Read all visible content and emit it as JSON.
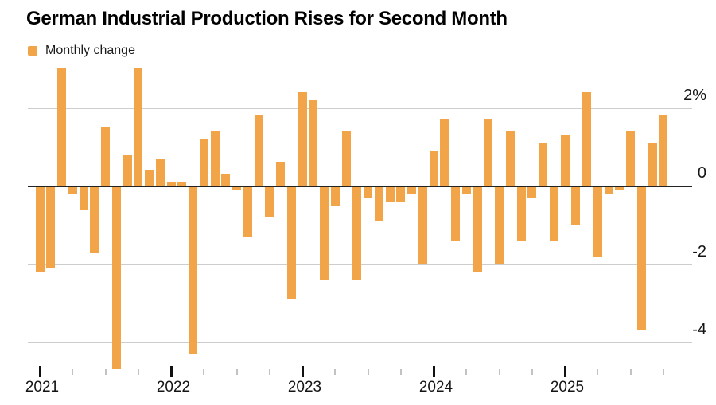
{
  "header": {
    "title": "German Industrial Production Rises for Second Month"
  },
  "legend": {
    "label": "Monthly change",
    "swatch_color": "#F2A449"
  },
  "chart_data": {
    "type": "bar",
    "title": "German Industrial Production Rises for Second Month",
    "series_name": "Monthly change",
    "unit": "percent, month-over-month",
    "bar_color": "#F2A449",
    "x": [
      "Jan 2021",
      "Feb 2021",
      "Mar 2021",
      "Apr 2021",
      "May 2021",
      "Jun 2021",
      "Jul 2021",
      "Aug 2021",
      "Sep 2021",
      "Oct 2021",
      "Nov 2021",
      "Dec 2021",
      "Jan 2022",
      "Feb 2022",
      "Mar 2022",
      "Apr 2022",
      "May 2022",
      "Jun 2022",
      "Jul 2022",
      "Aug 2022",
      "Sep 2022",
      "Oct 2022",
      "Nov 2022",
      "Dec 2022",
      "Jan 2023",
      "Feb 2023",
      "Mar 2023",
      "Apr 2023",
      "May 2023",
      "Jun 2023",
      "Jul 2023",
      "Aug 2023",
      "Sep 2023",
      "Oct 2023",
      "Nov 2023",
      "Dec 2023",
      "Jan 2024",
      "Feb 2024",
      "Mar 2024",
      "Apr 2024",
      "May 2024",
      "Jun 2024",
      "Jul 2024",
      "Aug 2024",
      "Sep 2024",
      "Oct 2024",
      "Nov 2024",
      "Dec 2024",
      "Jan 2025",
      "Feb 2025",
      "Mar 2025",
      "Apr 2025",
      "May 2025",
      "Jun 2025",
      "Jul 2025",
      "Aug 2025",
      "Sep 2025",
      "Oct 2025"
    ],
    "values": [
      -2.2,
      -2.1,
      3.0,
      -0.2,
      -0.6,
      -1.7,
      1.5,
      -4.7,
      0.8,
      3.0,
      0.4,
      0.7,
      0.1,
      0.1,
      -4.3,
      1.2,
      1.4,
      0.3,
      -0.1,
      -1.3,
      1.8,
      -0.8,
      0.6,
      -2.9,
      2.4,
      2.2,
      -2.4,
      -0.5,
      1.4,
      -2.4,
      -0.3,
      -0.9,
      -0.4,
      -0.4,
      -0.2,
      -2.0,
      0.9,
      1.7,
      -1.4,
      -0.2,
      -2.2,
      1.7,
      -2.0,
      1.4,
      -1.4,
      -0.3,
      1.1,
      -1.4,
      1.3,
      -1.0,
      2.4,
      -1.8,
      -0.2,
      -0.1,
      1.4,
      -3.7,
      1.1,
      1.8
    ],
    "y_axis": {
      "grid": true,
      "range_top": 3.05,
      "range_bottom": -4.9,
      "ticks": [
        {
          "label": "2%",
          "value": 2
        },
        {
          "label": "0",
          "value": 0
        },
        {
          "label": "-2",
          "value": -2
        },
        {
          "label": "-4",
          "value": -4
        }
      ]
    },
    "x_axis": {
      "tick_every_months": 3,
      "year_labels": [
        "2021",
        "2022",
        "2023",
        "2024",
        "2025"
      ]
    },
    "legend_position": "top-left"
  }
}
